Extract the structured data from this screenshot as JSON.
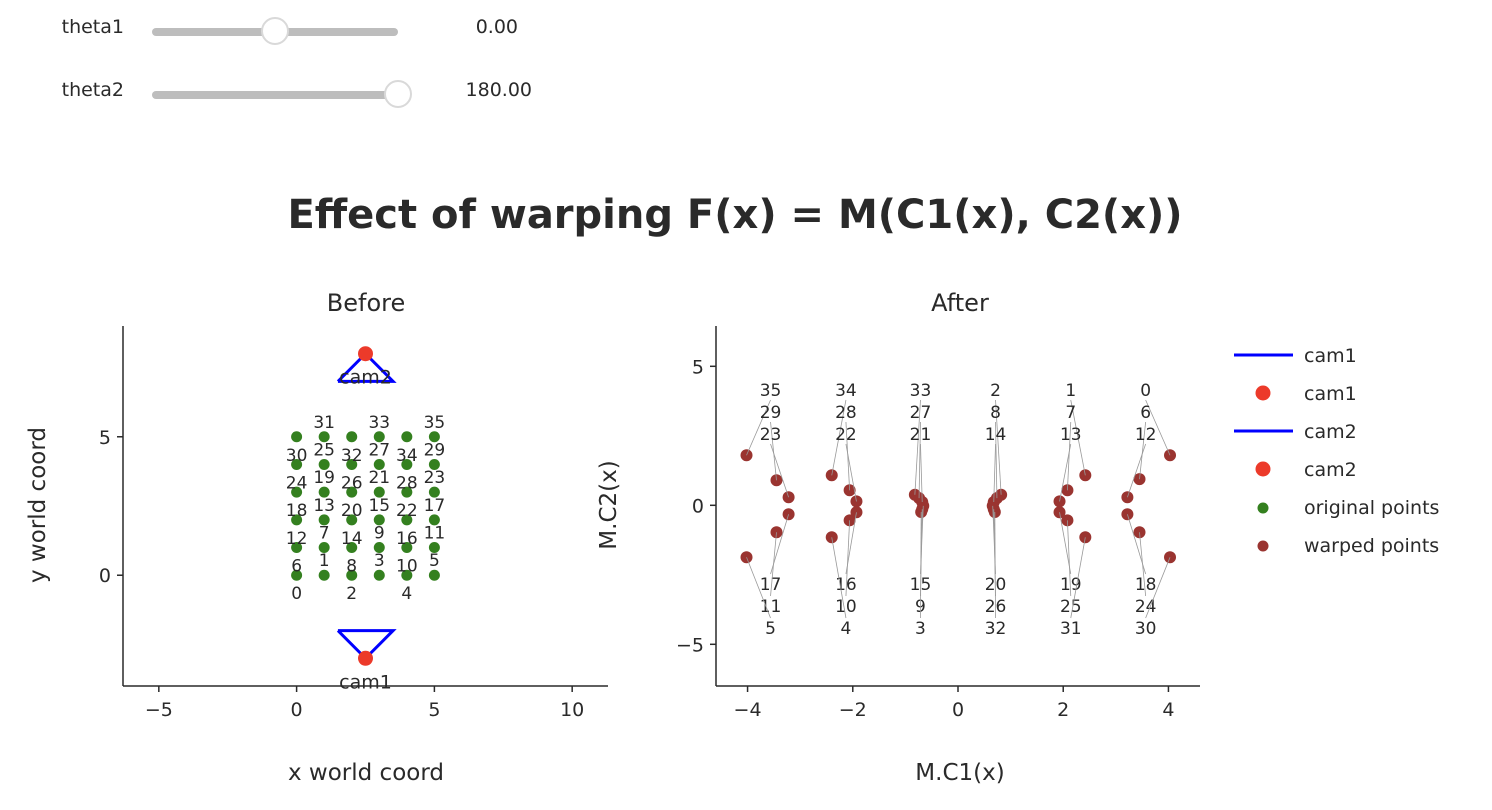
{
  "sliders": [
    {
      "label": "theta1",
      "value": 0.0,
      "value_text": "0.00",
      "min": -180,
      "max": 180
    },
    {
      "label": "theta2",
      "value": 180.0,
      "value_text": "180.00",
      "min": -180,
      "max": 180
    }
  ],
  "colors": {
    "cam_line": "#0000ff",
    "cam_marker": "#ec3a2a",
    "original": "#34801f",
    "warped": "#9a3430",
    "axis": "#2a2a2a"
  },
  "chart_data": {
    "title": "Effect of warping F(x) = M(C1(x), C2(x))",
    "legend_placement": "right",
    "legend": [
      {
        "name": "cam1",
        "kind": "line",
        "color": "#0000ff"
      },
      {
        "name": "cam1",
        "kind": "marker",
        "color": "#ec3a2a"
      },
      {
        "name": "cam2",
        "kind": "line",
        "color": "#0000ff"
      },
      {
        "name": "cam2",
        "kind": "marker",
        "color": "#ec3a2a"
      },
      {
        "name": "original points",
        "kind": "marker",
        "color": "#34801f"
      },
      {
        "name": "warped points",
        "kind": "marker",
        "color": "#9a3430"
      }
    ],
    "subplots": [
      {
        "title": "Before",
        "type": "scatter",
        "xlabel": "x world coord",
        "ylabel": "y world coord",
        "xlim": [
          -6.3,
          11.3
        ],
        "ylim": [
          -4.0,
          9.0
        ],
        "xticks": [
          -5,
          0,
          5,
          10
        ],
        "yticks": [
          0,
          5
        ],
        "grid": false,
        "cam1": {
          "line": [
            [
              1.5,
              -2
            ],
            [
              3.5,
              -2
            ],
            [
              2.5,
              -3
            ],
            [
              1.5,
              -2
            ]
          ],
          "marker": [
            2.5,
            -3
          ],
          "label": "cam1"
        },
        "cam2": {
          "line": [
            [
              1.5,
              7
            ],
            [
              3.5,
              7
            ],
            [
              2.5,
              8
            ],
            [
              1.5,
              7
            ]
          ],
          "marker": [
            2.5,
            8
          ],
          "label": "cam2"
        },
        "original_points": {
          "x_values": [
            0,
            1,
            2,
            3,
            4,
            5
          ],
          "y_values": [
            0,
            1,
            2,
            3,
            4,
            5
          ],
          "label_rule": "index = row*6 + col"
        }
      },
      {
        "title": "After",
        "type": "scatter",
        "xlabel": "M.C1(x)",
        "ylabel": "M.C2(x)",
        "xlim": [
          -4.6,
          4.6
        ],
        "ylim": [
          -6.5,
          6.45
        ],
        "xticks": [
          -4,
          -2,
          0,
          2,
          4
        ],
        "yticks": [
          -5,
          0,
          5
        ],
        "grid": false,
        "warped_points": [
          {
            "i": 0,
            "x": 4.03,
            "y": 1.8
          },
          {
            "i": 6,
            "x": 3.45,
            "y": 0.94
          },
          {
            "i": 12,
            "x": 3.22,
            "y": 0.29
          },
          {
            "i": 18,
            "x": 3.22,
            "y": -0.32
          },
          {
            "i": 24,
            "x": 3.45,
            "y": -0.97
          },
          {
            "i": 30,
            "x": 4.03,
            "y": -1.87
          },
          {
            "i": 1,
            "x": 2.42,
            "y": 1.08
          },
          {
            "i": 7,
            "x": 2.08,
            "y": 0.54
          },
          {
            "i": 13,
            "x": 1.93,
            "y": 0.14
          },
          {
            "i": 19,
            "x": 1.93,
            "y": -0.25
          },
          {
            "i": 25,
            "x": 2.08,
            "y": -0.54
          },
          {
            "i": 31,
            "x": 2.42,
            "y": -1.15
          },
          {
            "i": 2,
            "x": 0.82,
            "y": 0.38
          },
          {
            "i": 8,
            "x": 0.74,
            "y": 0.26
          },
          {
            "i": 14,
            "x": 0.68,
            "y": 0.12
          },
          {
            "i": 20,
            "x": 0.66,
            "y": -0.02
          },
          {
            "i": 26,
            "x": 0.68,
            "y": -0.14
          },
          {
            "i": 32,
            "x": 0.7,
            "y": -0.24
          },
          {
            "i": 33,
            "x": -0.82,
            "y": 0.38
          },
          {
            "i": 27,
            "x": -0.74,
            "y": 0.26
          },
          {
            "i": 21,
            "x": -0.68,
            "y": 0.12
          },
          {
            "i": 15,
            "x": -0.66,
            "y": -0.02
          },
          {
            "i": 9,
            "x": -0.68,
            "y": -0.14
          },
          {
            "i": 3,
            "x": -0.7,
            "y": -0.24
          },
          {
            "i": 34,
            "x": -2.4,
            "y": 1.08
          },
          {
            "i": 28,
            "x": -2.06,
            "y": 0.54
          },
          {
            "i": 22,
            "x": -1.93,
            "y": 0.14
          },
          {
            "i": 16,
            "x": -1.93,
            "y": -0.25
          },
          {
            "i": 10,
            "x": -2.06,
            "y": -0.54
          },
          {
            "i": 4,
            "x": -2.4,
            "y": -1.15
          },
          {
            "i": 35,
            "x": -4.02,
            "y": 1.8
          },
          {
            "i": 29,
            "x": -3.45,
            "y": 0.9
          },
          {
            "i": 23,
            "x": -3.22,
            "y": 0.29
          },
          {
            "i": 17,
            "x": -3.22,
            "y": -0.32
          },
          {
            "i": 11,
            "x": -3.45,
            "y": -0.97
          },
          {
            "i": 5,
            "x": -4.02,
            "y": -1.87
          }
        ]
      }
    ]
  }
}
